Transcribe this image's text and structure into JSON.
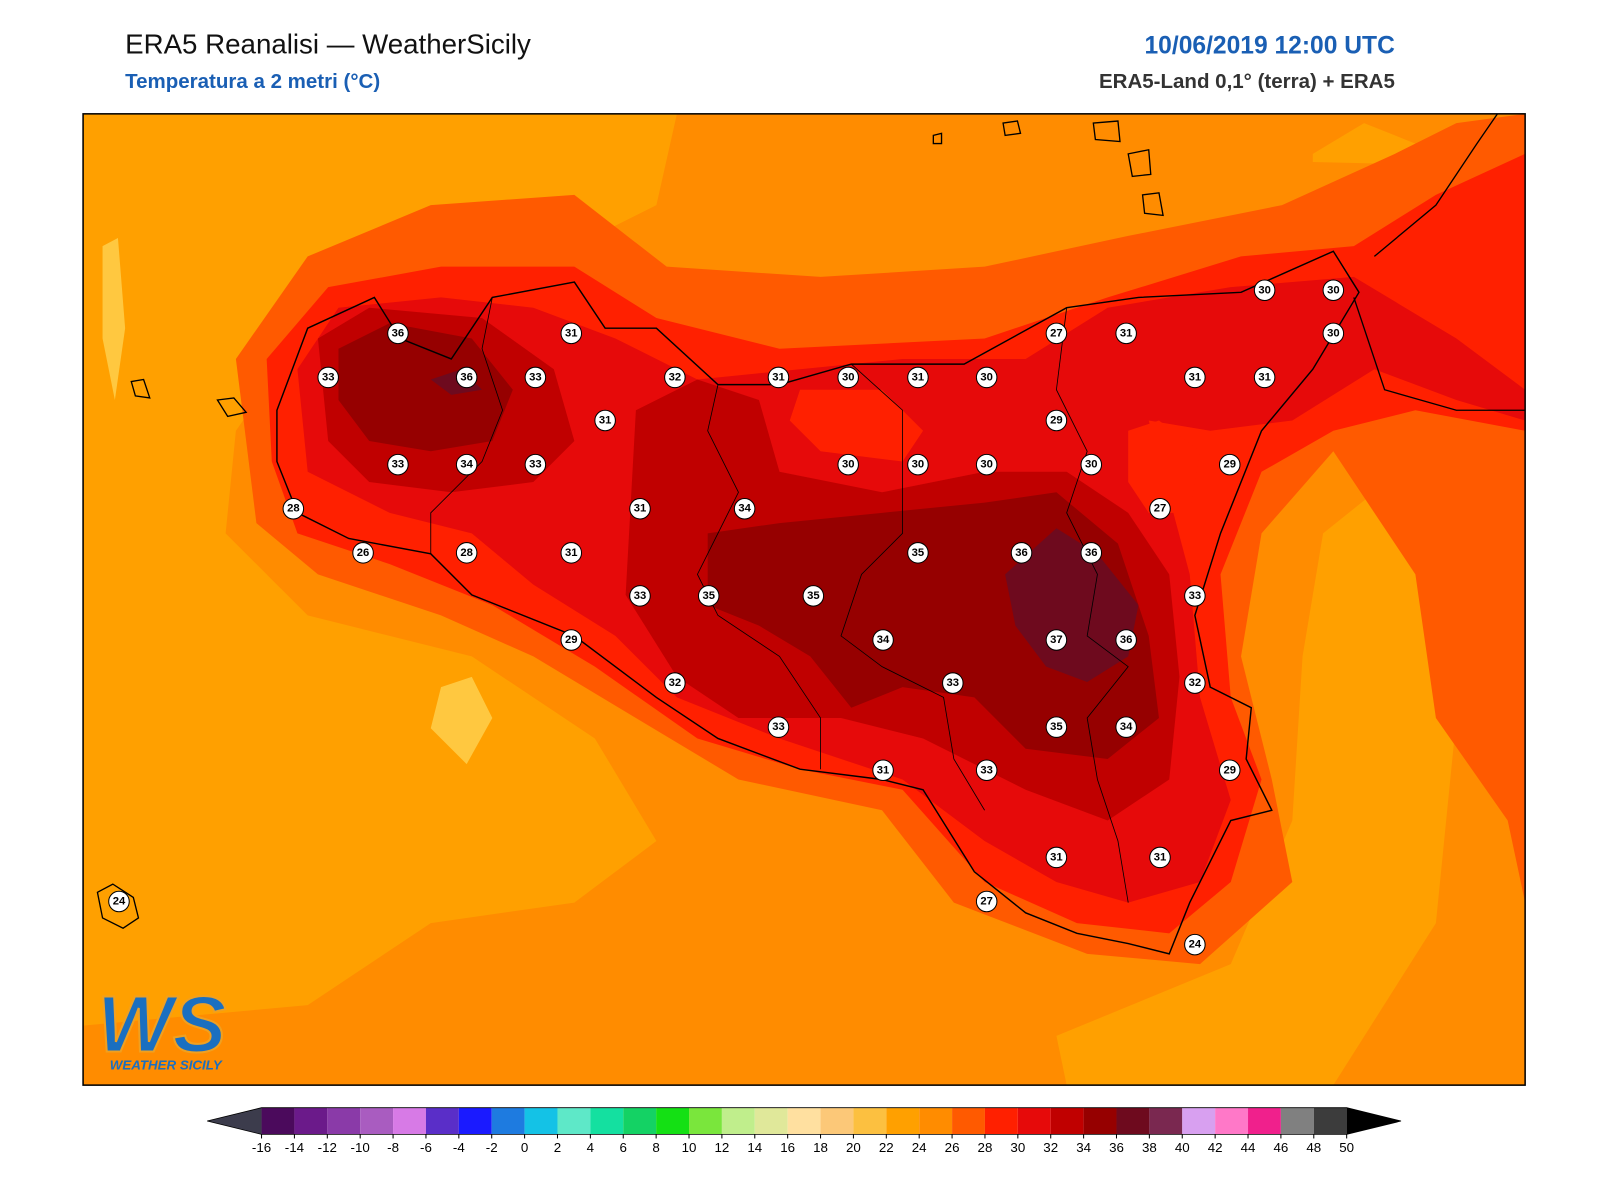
{
  "header": {
    "title": "ERA5 Reanalisi — WeatherSicily",
    "subtitle": "Temperatura a 2 metri (°C)",
    "date": "10/06/2019 12:00 UTC",
    "source": "ERA5-Land 0,1° (terra) + ERA5"
  },
  "stations": {
    "values": [
      36,
      31,
      33,
      36,
      33,
      32,
      31,
      30,
      31,
      30,
      31,
      33,
      34,
      33,
      30,
      30,
      30,
      30,
      28,
      31,
      34,
      26,
      28,
      31,
      35,
      36,
      36,
      33,
      35,
      35,
      29,
      34,
      37,
      36,
      32,
      33,
      33,
      35,
      34,
      31,
      33,
      31,
      31,
      27,
      24,
      24,
      30,
      30,
      27,
      31,
      30,
      31,
      31,
      29,
      29,
      27,
      33,
      32,
      29
    ]
  },
  "colorbar": {
    "ticks": [
      -16,
      -14,
      -12,
      -10,
      -8,
      -6,
      -4,
      -2,
      0,
      2,
      4,
      6,
      8,
      10,
      12,
      14,
      16,
      18,
      20,
      22,
      24,
      26,
      28,
      30,
      32,
      34,
      36,
      38,
      40,
      42,
      44,
      46,
      48,
      50
    ],
    "colors": [
      "#4b0a5c",
      "#6b1a8a",
      "#8a3aa8",
      "#a95cc0",
      "#d77ae6",
      "#5a2ec8",
      "#1a1aff",
      "#1e7be0",
      "#14c2e6",
      "#5ee8c8",
      "#14e0a0",
      "#14d264",
      "#14e014",
      "#7ae63c",
      "#c0ee8c",
      "#e0e89a",
      "#ffe0a0",
      "#fcc878",
      "#fcc040",
      "#ffa000",
      "#ff8c00",
      "#ff5a00",
      "#ff2000",
      "#e60a0a",
      "#c00000",
      "#960000",
      "#6e0a1e",
      "#7a2850",
      "#d8a0f0",
      "#ff78c8",
      "#f0208c",
      "#808080",
      "#3c3c3c"
    ],
    "under_color": "#3c3c4c",
    "over_color": "#000000"
  },
  "logo": {
    "mark": "WS",
    "name": "WEATHER SICILY"
  }
}
